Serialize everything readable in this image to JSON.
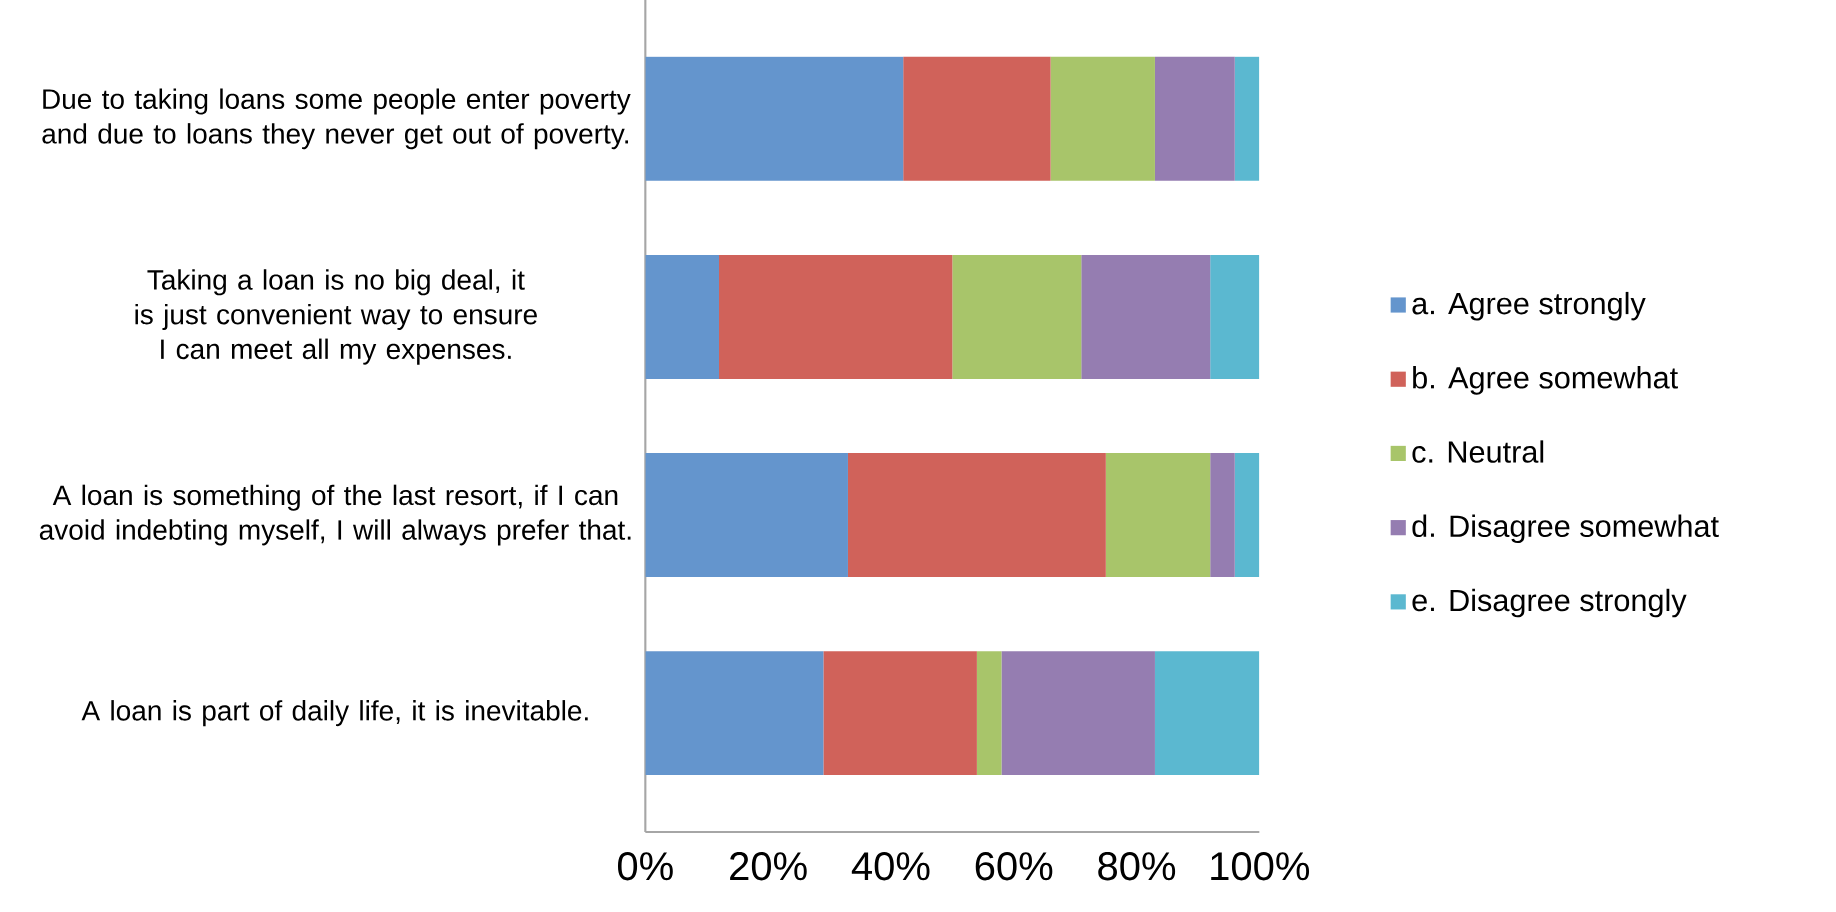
{
  "chart_data": {
    "type": "bar",
    "orientation": "horizontal",
    "stacked": true,
    "categories": [
      "Due to taking loans some people enter poverty and due to loans they never get out of poverty.",
      "Taking a loan is no big deal, it is just convenient way to ensure I can meet all my expenses.",
      "A loan is something of the last resort, if I can avoid indebting myself, I will always prefer that.",
      "A loan is part of daily life, it is inevitable."
    ],
    "series": [
      {
        "name": "a. Agree strongly",
        "color": "#6495cd",
        "values": [
          42,
          12,
          33,
          29
        ]
      },
      {
        "name": "b. Agree somewhat",
        "color": "#d0625a",
        "values": [
          24,
          38,
          42,
          25
        ]
      },
      {
        "name": "c. Neutral",
        "color": "#a8c56a",
        "values": [
          17,
          21,
          17,
          4
        ]
      },
      {
        "name": "d. Disagree somewhat",
        "color": "#957db1",
        "values": [
          13,
          21,
          4,
          25
        ]
      },
      {
        "name": "e. Disagree strongly",
        "color": "#5bb8d0",
        "values": [
          4,
          8,
          4,
          17
        ]
      }
    ],
    "xlim": [
      0,
      100
    ],
    "xticks": [
      {
        "value": 0,
        "label": "0%"
      },
      {
        "value": 20,
        "label": "20%"
      },
      {
        "value": 40,
        "label": "40%"
      },
      {
        "value": 60,
        "label": "60%"
      },
      {
        "value": 80,
        "label": "80%"
      },
      {
        "value": 100,
        "label": "100%"
      }
    ],
    "legend": "right"
  }
}
